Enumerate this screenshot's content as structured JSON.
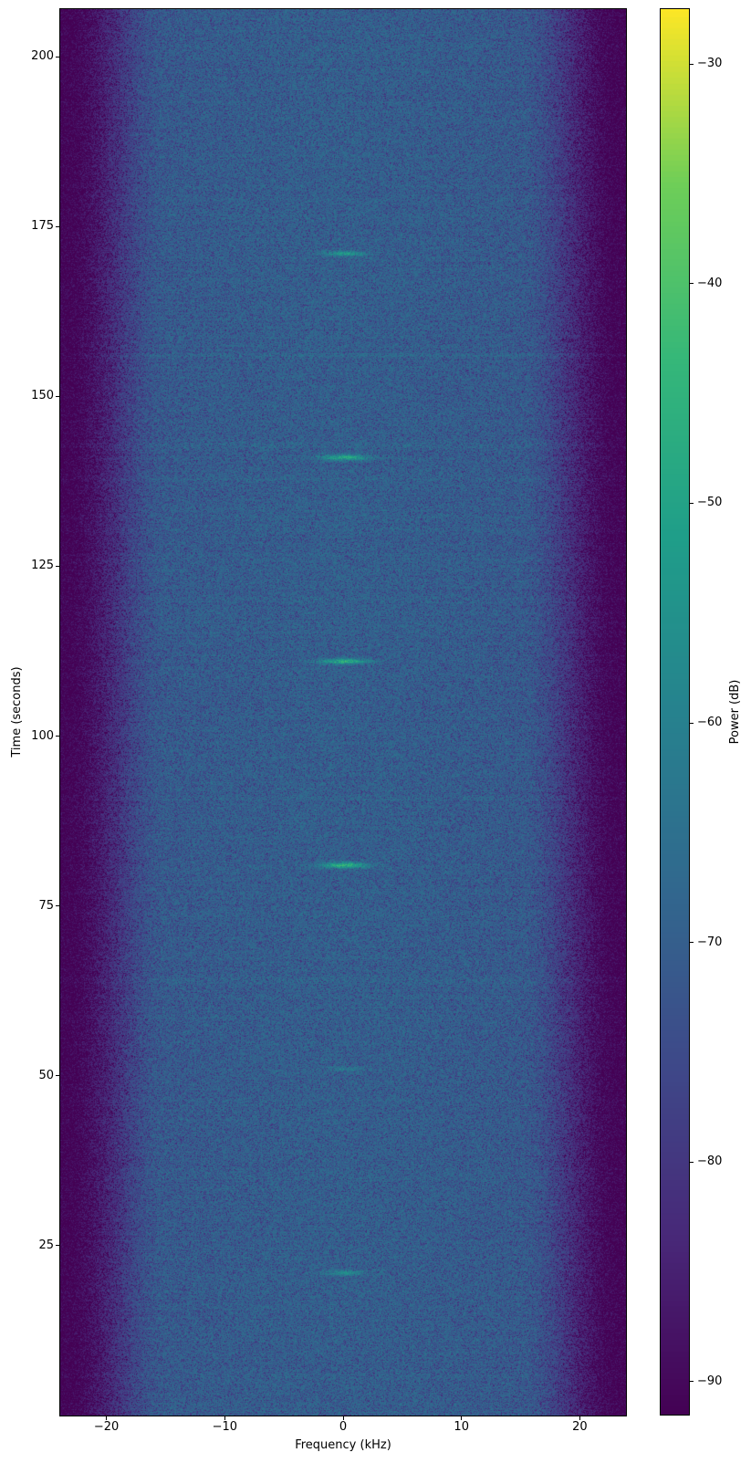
{
  "plot": {
    "xlabel": "Frequency (kHz)",
    "ylabel": "Time (seconds)",
    "x_ticks": [
      {
        "value": -20,
        "label": "−20"
      },
      {
        "value": -10,
        "label": "−10"
      },
      {
        "value": 0,
        "label": "0"
      },
      {
        "value": 10,
        "label": "10"
      },
      {
        "value": 20,
        "label": "20"
      }
    ],
    "y_ticks": [
      {
        "value": 25,
        "label": "25"
      },
      {
        "value": 50,
        "label": "50"
      },
      {
        "value": 75,
        "label": "75"
      },
      {
        "value": 100,
        "label": "100"
      },
      {
        "value": 125,
        "label": "125"
      },
      {
        "value": 150,
        "label": "150"
      },
      {
        "value": 175,
        "label": "175"
      },
      {
        "value": 200,
        "label": "200"
      }
    ]
  },
  "colorbar": {
    "label": "Power (dB)",
    "ticks": [
      {
        "value": -30,
        "label": "−30"
      },
      {
        "value": -40,
        "label": "−40"
      },
      {
        "value": -50,
        "label": "−50"
      },
      {
        "value": -60,
        "label": "−60"
      },
      {
        "value": -70,
        "label": "−70"
      },
      {
        "value": -80,
        "label": "−80"
      },
      {
        "value": -90,
        "label": "−90"
      }
    ],
    "vmin": -91.5,
    "vmax": -27.5
  },
  "chart_data": {
    "type": "heatmap",
    "title": "",
    "xlabel": "Frequency (kHz)",
    "ylabel": "Time (seconds)",
    "zlabel": "Power (dB)",
    "x_range_khz": [
      -23.9,
      23.9
    ],
    "y_range_s": [
      0,
      207
    ],
    "z_range_db": [
      -91.5,
      -27.5
    ],
    "colormap": {
      "name": "viridis",
      "stops": [
        "#440154",
        "#482878",
        "#3e4989",
        "#31688e",
        "#26828e",
        "#1f9e89",
        "#35b779",
        "#6ece58",
        "#fde725"
      ]
    },
    "noise_floor_db": {
      "center": -69.5,
      "mid": -70.7,
      "edge": -92.0,
      "flat_until_khz": 15,
      "rolloff_end_khz": 23.5
    },
    "pixel_noise": {
      "model": "log-exponential-speckle",
      "scale_db": 0.9,
      "offset_db": 1.5,
      "clamp_db": [
        -12,
        6
      ]
    },
    "row_noise_db": 0.9,
    "bright_rows": [
      {
        "time_s": 156,
        "boost_db": 1.3
      },
      {
        "time_s": 142.8,
        "boost_db": 1.3
      },
      {
        "time_s": 138,
        "boost_db": 1.1
      },
      {
        "time_s": 120,
        "boost_db": 1.0
      },
      {
        "time_s": 91,
        "boost_db": 1.2
      },
      {
        "time_s": 64,
        "boost_db": 1.0
      }
    ],
    "bursts": [
      {
        "time_s": 21,
        "center_khz": 0.1,
        "peak_db": -56,
        "sigma_khz": 1.25,
        "sigma_s": 0.26
      },
      {
        "time_s": 51,
        "center_khz": 0.1,
        "peak_db": -62,
        "sigma_khz": 1.05,
        "sigma_s": 0.22
      },
      {
        "time_s": 81,
        "center_khz": 0.1,
        "peak_db": -45,
        "sigma_khz": 1.4,
        "sigma_s": 0.3
      },
      {
        "time_s": 111,
        "center_khz": 0.1,
        "peak_db": -46,
        "sigma_khz": 1.4,
        "sigma_s": 0.28
      },
      {
        "time_s": 141,
        "center_khz": 0.1,
        "peak_db": -47,
        "sigma_khz": 1.4,
        "sigma_s": 0.3
      },
      {
        "time_s": 171,
        "center_khz": 0.1,
        "peak_db": -52,
        "sigma_khz": 1.2,
        "sigma_s": 0.26
      }
    ]
  }
}
